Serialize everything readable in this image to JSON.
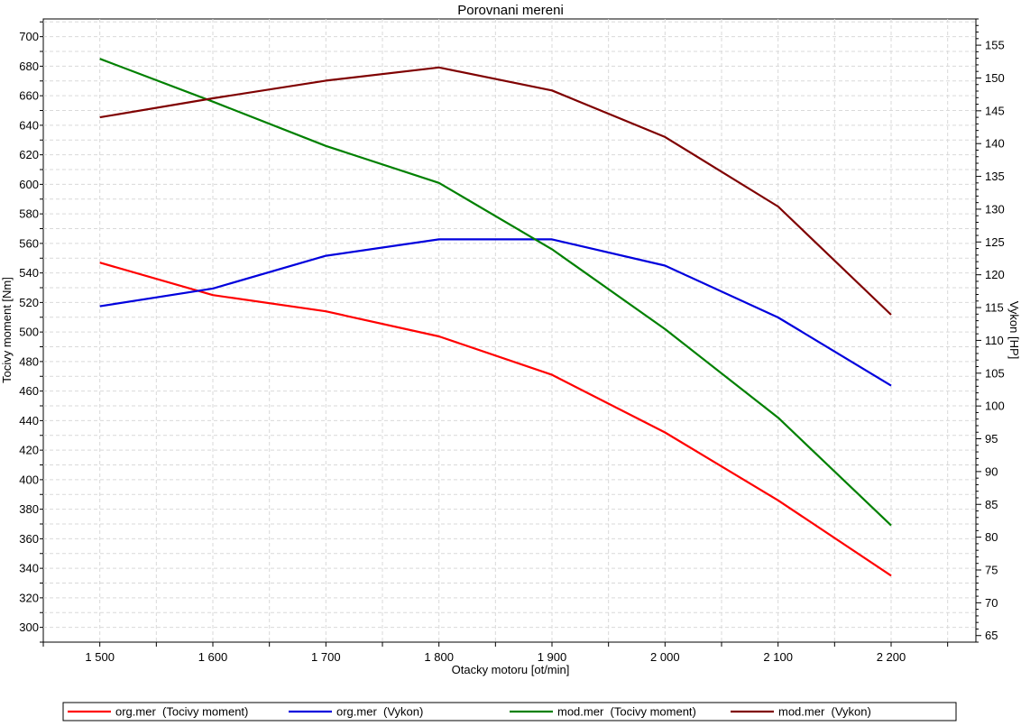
{
  "chart_data": {
    "type": "line",
    "title": "Porovnani mereni",
    "xlabel": "Otacky motoru [ot/min]",
    "ylabel_left": "Tocivy moment [Nm]",
    "ylabel_right": "Vykon [HP]",
    "x": [
      1500,
      1600,
      1700,
      1800,
      1900,
      2000,
      2100,
      2200
    ],
    "x_ticks": [
      1500,
      1600,
      1700,
      1800,
      1900,
      2000,
      2100,
      2200
    ],
    "x_tick_labels": [
      "1 500",
      "1 600",
      "1 700",
      "1 800",
      "1 900",
      "2 000",
      "2 100",
      "2 200"
    ],
    "xlim": [
      1450,
      2275
    ],
    "ylim_left": [
      290,
      712
    ],
    "ylim_right": [
      64,
      159
    ],
    "y_left_ticks": [
      300,
      320,
      340,
      360,
      380,
      400,
      420,
      440,
      460,
      480,
      500,
      520,
      540,
      560,
      580,
      600,
      620,
      640,
      660,
      680,
      700
    ],
    "y_right_ticks": [
      65,
      70,
      75,
      80,
      85,
      90,
      95,
      100,
      105,
      110,
      115,
      120,
      125,
      130,
      135,
      140,
      145,
      150,
      155
    ],
    "grid": true,
    "legend_position": "bottom",
    "series": [
      {
        "name": "org.mer  (Tocivy moment)",
        "axis": "left",
        "color": "#ff0000",
        "values": [
          547,
          525,
          514,
          497,
          471,
          432,
          386,
          335
        ]
      },
      {
        "name": "org.mer  (Vykon)",
        "axis": "right",
        "color": "#0000dd",
        "values": [
          115.2,
          117.9,
          122.9,
          125.4,
          125.4,
          121.4,
          113.5,
          103.1
        ]
      },
      {
        "name": "mod.mer  (Tocivy moment)",
        "axis": "left",
        "color": "#008000",
        "values": [
          685,
          656,
          626,
          601,
          556,
          502,
          442,
          369
        ]
      },
      {
        "name": "mod.mer  (Vykon)",
        "axis": "right",
        "color": "#7f0000",
        "values": [
          144.0,
          146.9,
          149.6,
          151.6,
          148.1,
          141.0,
          130.4,
          113.9
        ]
      }
    ]
  }
}
